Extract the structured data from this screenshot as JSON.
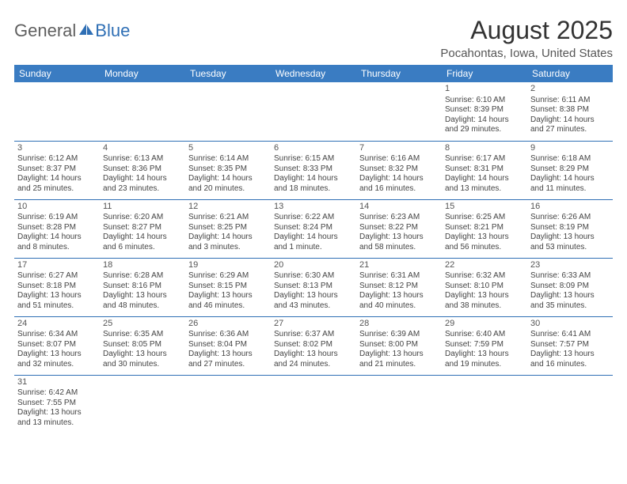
{
  "logo": {
    "part1": "General",
    "part2": "Blue"
  },
  "header": {
    "title": "August 2025",
    "location": "Pocahontas, Iowa, United States"
  },
  "colors": {
    "header_bg": "#3a7cc2",
    "border": "#2f6fb5",
    "text": "#333333",
    "logo_gray": "#5f5f5f",
    "logo_blue": "#2f6fb5"
  },
  "day_names": [
    "Sunday",
    "Monday",
    "Tuesday",
    "Wednesday",
    "Thursday",
    "Friday",
    "Saturday"
  ],
  "weeks": [
    [
      null,
      null,
      null,
      null,
      null,
      {
        "n": "1",
        "sr": "6:10 AM",
        "ss": "8:39 PM",
        "dl": "14 hours and 29 minutes."
      },
      {
        "n": "2",
        "sr": "6:11 AM",
        "ss": "8:38 PM",
        "dl": "14 hours and 27 minutes."
      }
    ],
    [
      {
        "n": "3",
        "sr": "6:12 AM",
        "ss": "8:37 PM",
        "dl": "14 hours and 25 minutes."
      },
      {
        "n": "4",
        "sr": "6:13 AM",
        "ss": "8:36 PM",
        "dl": "14 hours and 23 minutes."
      },
      {
        "n": "5",
        "sr": "6:14 AM",
        "ss": "8:35 PM",
        "dl": "14 hours and 20 minutes."
      },
      {
        "n": "6",
        "sr": "6:15 AM",
        "ss": "8:33 PM",
        "dl": "14 hours and 18 minutes."
      },
      {
        "n": "7",
        "sr": "6:16 AM",
        "ss": "8:32 PM",
        "dl": "14 hours and 16 minutes."
      },
      {
        "n": "8",
        "sr": "6:17 AM",
        "ss": "8:31 PM",
        "dl": "14 hours and 13 minutes."
      },
      {
        "n": "9",
        "sr": "6:18 AM",
        "ss": "8:29 PM",
        "dl": "14 hours and 11 minutes."
      }
    ],
    [
      {
        "n": "10",
        "sr": "6:19 AM",
        "ss": "8:28 PM",
        "dl": "14 hours and 8 minutes."
      },
      {
        "n": "11",
        "sr": "6:20 AM",
        "ss": "8:27 PM",
        "dl": "14 hours and 6 minutes."
      },
      {
        "n": "12",
        "sr": "6:21 AM",
        "ss": "8:25 PM",
        "dl": "14 hours and 3 minutes."
      },
      {
        "n": "13",
        "sr": "6:22 AM",
        "ss": "8:24 PM",
        "dl": "14 hours and 1 minute."
      },
      {
        "n": "14",
        "sr": "6:23 AM",
        "ss": "8:22 PM",
        "dl": "13 hours and 58 minutes."
      },
      {
        "n": "15",
        "sr": "6:25 AM",
        "ss": "8:21 PM",
        "dl": "13 hours and 56 minutes."
      },
      {
        "n": "16",
        "sr": "6:26 AM",
        "ss": "8:19 PM",
        "dl": "13 hours and 53 minutes."
      }
    ],
    [
      {
        "n": "17",
        "sr": "6:27 AM",
        "ss": "8:18 PM",
        "dl": "13 hours and 51 minutes."
      },
      {
        "n": "18",
        "sr": "6:28 AM",
        "ss": "8:16 PM",
        "dl": "13 hours and 48 minutes."
      },
      {
        "n": "19",
        "sr": "6:29 AM",
        "ss": "8:15 PM",
        "dl": "13 hours and 46 minutes."
      },
      {
        "n": "20",
        "sr": "6:30 AM",
        "ss": "8:13 PM",
        "dl": "13 hours and 43 minutes."
      },
      {
        "n": "21",
        "sr": "6:31 AM",
        "ss": "8:12 PM",
        "dl": "13 hours and 40 minutes."
      },
      {
        "n": "22",
        "sr": "6:32 AM",
        "ss": "8:10 PM",
        "dl": "13 hours and 38 minutes."
      },
      {
        "n": "23",
        "sr": "6:33 AM",
        "ss": "8:09 PM",
        "dl": "13 hours and 35 minutes."
      }
    ],
    [
      {
        "n": "24",
        "sr": "6:34 AM",
        "ss": "8:07 PM",
        "dl": "13 hours and 32 minutes."
      },
      {
        "n": "25",
        "sr": "6:35 AM",
        "ss": "8:05 PM",
        "dl": "13 hours and 30 minutes."
      },
      {
        "n": "26",
        "sr": "6:36 AM",
        "ss": "8:04 PM",
        "dl": "13 hours and 27 minutes."
      },
      {
        "n": "27",
        "sr": "6:37 AM",
        "ss": "8:02 PM",
        "dl": "13 hours and 24 minutes."
      },
      {
        "n": "28",
        "sr": "6:39 AM",
        "ss": "8:00 PM",
        "dl": "13 hours and 21 minutes."
      },
      {
        "n": "29",
        "sr": "6:40 AM",
        "ss": "7:59 PM",
        "dl": "13 hours and 19 minutes."
      },
      {
        "n": "30",
        "sr": "6:41 AM",
        "ss": "7:57 PM",
        "dl": "13 hours and 16 minutes."
      }
    ],
    [
      {
        "n": "31",
        "sr": "6:42 AM",
        "ss": "7:55 PM",
        "dl": "13 hours and 13 minutes."
      },
      null,
      null,
      null,
      null,
      null,
      null
    ]
  ],
  "labels": {
    "sunrise": "Sunrise:",
    "sunset": "Sunset:",
    "daylight": "Daylight:"
  }
}
